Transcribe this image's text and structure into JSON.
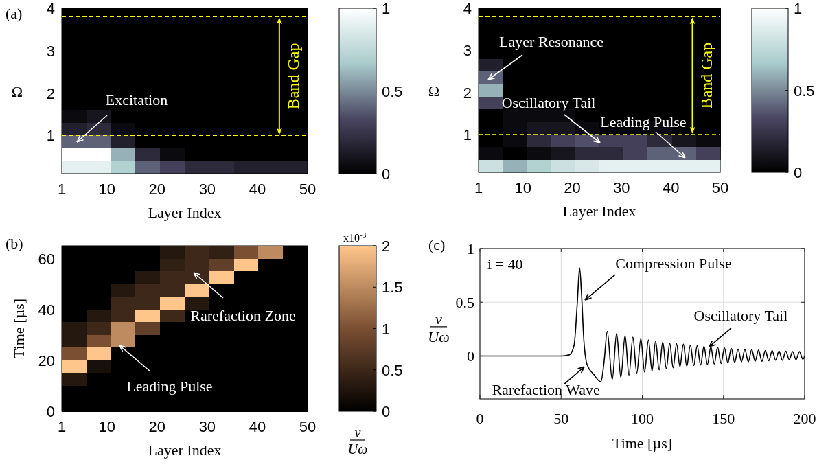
{
  "chart_data": [
    {
      "type": "heatmap",
      "xlabel": "Layer Index",
      "ylabel": "Ω",
      "xlim": [
        1,
        50
      ],
      "xticks": [
        1,
        10,
        20,
        30,
        40,
        50
      ],
      "ylim": [
        0.1,
        4
      ],
      "yticks": [
        1,
        2,
        3,
        4
      ],
      "clim": [
        0,
        1
      ],
      "cticks": [
        0,
        0.5,
        1
      ],
      "colors": [
        "#000000",
        "#4b4763",
        "#a9cccc",
        "#ffffff"
      ],
      "cells": [
        [
          0,
          0,
          0,
          0,
          0,
          0,
          0,
          0,
          0,
          0
        ],
        [
          0,
          0,
          0,
          0,
          0,
          0,
          0,
          0,
          0,
          0
        ],
        [
          0,
          0,
          0,
          0,
          0,
          0,
          0,
          0,
          0,
          0
        ],
        [
          0,
          0,
          0,
          0,
          0,
          0,
          0,
          0,
          0,
          0
        ],
        [
          0,
          0,
          0,
          0,
          0,
          0,
          0,
          0,
          0,
          0
        ],
        [
          0,
          0,
          0,
          0,
          0,
          0,
          0,
          0,
          0,
          0
        ],
        [
          0,
          0,
          0,
          0,
          0,
          0,
          0,
          0,
          0,
          0
        ],
        [
          0,
          0,
          0,
          0,
          0,
          0,
          0,
          0,
          0,
          0
        ],
        [
          0.05,
          0.1,
          0,
          0,
          0,
          0,
          0,
          0,
          0,
          0
        ],
        [
          0.15,
          0.2,
          0.05,
          0,
          0,
          0,
          0,
          0,
          0,
          0
        ],
        [
          0.4,
          0.4,
          0.15,
          0,
          0,
          0,
          0,
          0,
          0,
          0
        ],
        [
          1,
          1,
          0.6,
          0.2,
          0.05,
          0,
          0,
          0,
          0,
          0
        ],
        [
          0.9,
          0.9,
          0.7,
          0.4,
          0.3,
          0.2,
          0.2,
          0.15,
          0.15,
          0.15
        ]
      ],
      "ref_lines": [
        {
          "axis": "y",
          "value": 1,
          "color": "#ffff00",
          "line_style": "dashed"
        },
        {
          "axis": "y",
          "value": 3.8,
          "label": "Band Gap",
          "color": "#ffff00",
          "line_style": "dashed"
        }
      ],
      "annotations": [
        "(a)",
        "Excitation"
      ]
    },
    {
      "type": "heatmap",
      "xlabel": "Layer Index",
      "ylabel": "Ω",
      "xlim": [
        1,
        50
      ],
      "xticks": [
        1,
        10,
        20,
        30,
        40,
        50
      ],
      "ylim": [
        0.1,
        4
      ],
      "yticks": [
        1,
        2,
        3,
        4
      ],
      "clim": [
        0,
        1
      ],
      "cticks": [
        0,
        0.5,
        1
      ],
      "colors": [
        "#000000",
        "#4b4763",
        "#a9cccc",
        "#ffffff"
      ],
      "cells": [
        [
          0,
          0,
          0,
          0,
          0,
          0,
          0,
          0,
          0,
          0
        ],
        [
          0,
          0,
          0,
          0,
          0,
          0,
          0,
          0,
          0,
          0
        ],
        [
          0,
          0,
          0,
          0,
          0,
          0,
          0,
          0,
          0,
          0
        ],
        [
          0,
          0,
          0,
          0,
          0,
          0,
          0,
          0,
          0,
          0
        ],
        [
          0.15,
          0,
          0,
          0,
          0,
          0,
          0,
          0,
          0,
          0
        ],
        [
          0.4,
          0,
          0,
          0,
          0,
          0,
          0,
          0,
          0,
          0
        ],
        [
          0.6,
          0,
          0,
          0,
          0,
          0,
          0,
          0,
          0,
          0
        ],
        [
          0.3,
          0,
          0,
          0,
          0,
          0,
          0,
          0,
          0,
          0
        ],
        [
          0,
          0.05,
          0.05,
          0.05,
          0,
          0,
          0,
          0,
          0,
          0
        ],
        [
          0,
          0.05,
          0.1,
          0.1,
          0.05,
          0,
          0,
          0.05,
          0,
          0
        ],
        [
          0,
          0.05,
          0.2,
          0.3,
          0.35,
          0.3,
          0.3,
          0.2,
          0.1,
          0.05
        ],
        [
          0.05,
          0,
          0.05,
          0.1,
          0.2,
          0.2,
          0.3,
          0.4,
          0.4,
          0.3
        ],
        [
          0.8,
          0.6,
          0.7,
          0.8,
          0.85,
          0.9,
          0.9,
          0.9,
          0.9,
          0.9
        ]
      ],
      "ref_lines": [
        {
          "axis": "y",
          "value": 1,
          "color": "#ffff00",
          "line_style": "dashed"
        },
        {
          "axis": "y",
          "value": 3.8,
          "label": "Band Gap",
          "color": "#ffff00",
          "line_style": "dashed"
        }
      ],
      "annotations": [
        "Layer Resonance",
        "Oscillatory Tail",
        "Leading Pulse"
      ]
    },
    {
      "type": "heatmap",
      "xlabel": "Layer Index",
      "ylabel": "Time [µs]",
      "clabel": "v/Uω",
      "xlim": [
        1,
        50
      ],
      "xticks": [
        1,
        10,
        20,
        30,
        40,
        50
      ],
      "ylim": [
        0,
        65
      ],
      "yticks": [
        0,
        20,
        40,
        60
      ],
      "clim": [
        0,
        2
      ],
      "cticks": [
        0,
        0.5,
        1,
        1.5,
        2
      ],
      "colors": [
        "#000000",
        "#7a4f32",
        "#ffc68c"
      ],
      "cells": [
        [
          0,
          0,
          0,
          0,
          0.3,
          0.5,
          0.4,
          1,
          1.5,
          0
        ],
        [
          0,
          0,
          0,
          0,
          0.4,
          0.5,
          0.8,
          2,
          0,
          0
        ],
        [
          0,
          0,
          0,
          0.3,
          0.5,
          0.5,
          2,
          0,
          0,
          0
        ],
        [
          0,
          0,
          0.3,
          0.5,
          0.5,
          2,
          0,
          0,
          0,
          0
        ],
        [
          0,
          0,
          0.5,
          0.5,
          2,
          0.3,
          0,
          0,
          0,
          0
        ],
        [
          0,
          0.3,
          0.5,
          2,
          0.5,
          0,
          0,
          0,
          0,
          0
        ],
        [
          0.3,
          0.5,
          1.5,
          0.8,
          0,
          0,
          0,
          0,
          0,
          0
        ],
        [
          0.3,
          1,
          1.5,
          0,
          0,
          0,
          0,
          0,
          0,
          0
        ],
        [
          1,
          2,
          0,
          0,
          0,
          0,
          0,
          0,
          0,
          0
        ],
        [
          2,
          0.2,
          0,
          0,
          0,
          0,
          0,
          0,
          0,
          0
        ],
        [
          0.3,
          0,
          0,
          0,
          0,
          0,
          0,
          0,
          0,
          0
        ],
        [
          0,
          0,
          0,
          0,
          0,
          0,
          0,
          0,
          0,
          0
        ],
        [
          0,
          0,
          0,
          0,
          0,
          0,
          0,
          0,
          0,
          0
        ]
      ],
      "annotations": [
        "(b)",
        "Rarefaction Zone",
        "Leading Pulse",
        "x10$^{-3}$"
      ]
    },
    {
      "type": "line",
      "xlabel": "Time [µs]",
      "ylabel": "v/Uω",
      "xlim": [
        0,
        200
      ],
      "xticks": [
        0,
        50,
        100,
        150,
        200
      ],
      "ylim": [
        -0.4,
        1
      ],
      "yticks": [
        0,
        0.5,
        1
      ],
      "grid": true,
      "x": [
        0,
        50,
        55,
        58,
        60,
        61.4,
        62.5,
        64,
        66,
        70,
        74.5,
        76.5,
        78.4,
        81.5,
        84.2,
        86.8,
        89.4,
        91.8,
        94.2,
        96.6,
        99.1,
        101.4,
        103.8,
        106,
        108.2,
        110.4,
        112.6,
        114.8,
        116.9,
        119,
        121.1,
        123.2,
        125.3,
        127.4,
        129.6,
        131.7,
        133.8,
        135.9,
        138,
        140.1,
        142.2,
        144.3,
        146.4,
        148.5,
        150.6,
        152.7,
        154.8,
        156.9,
        159,
        161.1,
        163.2,
        165.3,
        167.4,
        169.5,
        171.6,
        173.7,
        175.8,
        177.9,
        180,
        182.1,
        184.2,
        186.3,
        188.4,
        190.5,
        192.6,
        194.7,
        196.8,
        198.9,
        200
      ],
      "series": [
        {
          "color": "#000000",
          "values": [
            0,
            0,
            0.01,
            0.1,
            0.5,
            0.82,
            0.6,
            0.15,
            -0.08,
            -0.17,
            -0.24,
            -0.05,
            0.23,
            -0.22,
            0.21,
            -0.2,
            0.19,
            -0.18,
            0.175,
            -0.16,
            0.16,
            -0.15,
            0.15,
            -0.14,
            0.14,
            -0.13,
            0.13,
            -0.12,
            0.12,
            -0.11,
            0.115,
            -0.1,
            0.11,
            -0.095,
            0.1,
            -0.09,
            0.095,
            -0.085,
            0.09,
            -0.08,
            0.085,
            -0.075,
            0.08,
            -0.07,
            0.075,
            -0.065,
            0.07,
            -0.06,
            0.065,
            -0.055,
            0.06,
            -0.055,
            0.06,
            -0.05,
            0.055,
            -0.05,
            0.05,
            -0.045,
            0.05,
            -0.04,
            0.045,
            -0.04,
            0.045,
            -0.035,
            0.04,
            -0.035,
            0.04,
            -0.03,
            0
          ]
        }
      ],
      "annotations": [
        "(c)",
        "i = 40",
        {
          "text": "Compression Pulse",
          "x": 64.7,
          "y": 0.52
        },
        {
          "text": "Rarefaction Wave",
          "x": 64.3,
          "y": -0.1
        },
        {
          "text": "Oscillatory Tail",
          "x": 141.2,
          "y": 0.086
        }
      ]
    }
  ]
}
